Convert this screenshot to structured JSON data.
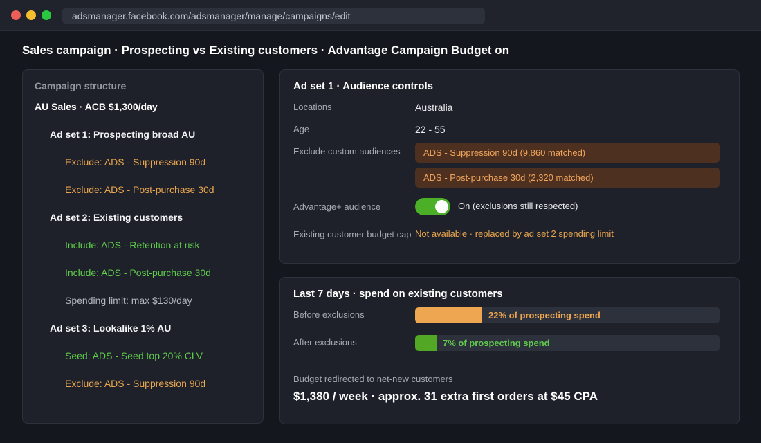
{
  "browser": {
    "url": "adsmanager.facebook.com/adsmanager/manage/campaigns/edit"
  },
  "page": {
    "title": "Sales campaign  ·  Prospecting vs Existing customers  ·  Advantage Campaign Budget on"
  },
  "structure": {
    "heading": "Campaign structure",
    "campaign": "AU Sales  ·  ACB $1,300/day",
    "adsets": [
      {
        "label": "Ad set 1: Prospecting broad AU",
        "rules": [
          {
            "text": "Exclude: ADS - Suppression 90d",
            "color": "#e9a54f"
          },
          {
            "text": "Exclude: ADS - Post-purchase 30d",
            "color": "#e9a54f"
          }
        ]
      },
      {
        "label": "Ad set 2: Existing customers",
        "rules": [
          {
            "text": "Include: ADS - Retention at risk",
            "color": "#5fcc4c"
          },
          {
            "text": "Include: ADS - Post-purchase 30d",
            "color": "#5fcc4c"
          },
          {
            "text": "Spending limit: max $130/day",
            "color": "#b3b7bf"
          }
        ]
      },
      {
        "label": "Ad set 3: Lookalike 1% AU",
        "rules": [
          {
            "text": "Seed: ADS - Seed top 20% CLV",
            "color": "#5fcc4c"
          },
          {
            "text": "Exclude: ADS - Suppression 90d",
            "color": "#e9a54f"
          }
        ]
      }
    ]
  },
  "audience": {
    "title": "Ad set 1  ·  Audience controls",
    "locations_label": "Locations",
    "locations_value": "Australia",
    "age_label": "Age",
    "age_value": "22 - 55",
    "exclude_label": "Exclude custom audiences",
    "exclusions": [
      "ADS - Suppression 90d  (9,860 matched)",
      "ADS - Post-purchase 30d  (2,320 matched)"
    ],
    "advantage_label": "Advantage+ audience",
    "advantage_on": true,
    "advantage_text": "On  (exclusions still respected)",
    "cap_label": "Existing customer budget cap",
    "cap_value": "Not available  ·  replaced by ad set 2 spending limit"
  },
  "spend": {
    "title": "Last 7 days  ·  spend on existing customers",
    "bars": [
      {
        "label": "Before exclusions",
        "share": 0.22,
        "text": "22% of prospecting spend",
        "fill_color": "#efa650",
        "text_color": "#efa650"
      },
      {
        "label": "After exclusions",
        "share": 0.07,
        "text": "7% of prospecting spend",
        "fill_color": "#52a824",
        "text_color": "#5fcc4c"
      }
    ],
    "redirect_label": "Budget redirected to net-new customers",
    "redirect_value": "$1,380 / week  ·  approx. 31 extra first orders at $45 CPA"
  },
  "colors": {
    "accent_orange": "#e9a54f",
    "accent_green": "#5fcc4c",
    "toggle_on": "#4caf28"
  }
}
